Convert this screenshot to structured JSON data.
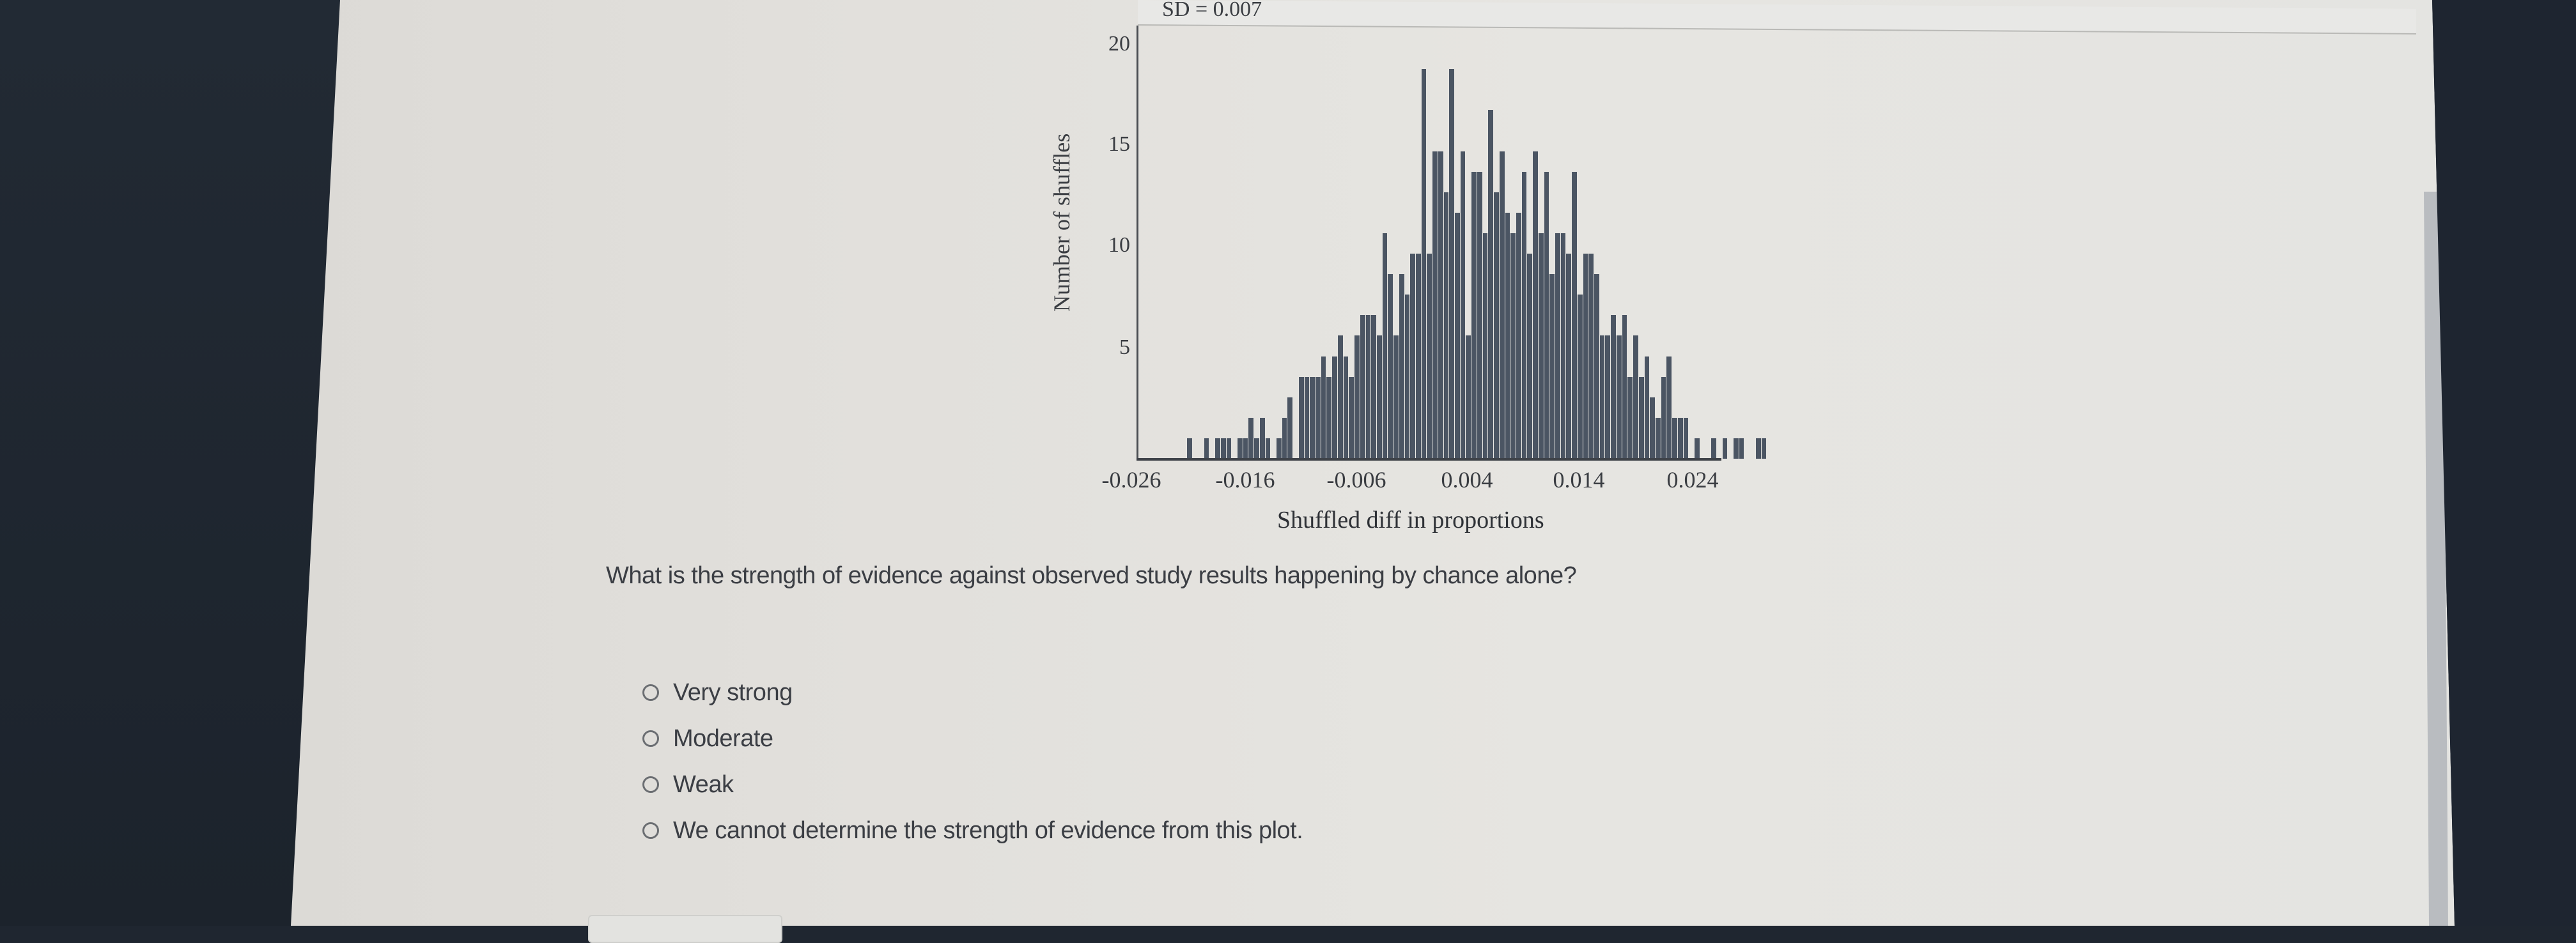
{
  "chart_data": {
    "type": "bar",
    "subtype": "histogram",
    "title": "",
    "annotation": "SD = 0.007",
    "xlabel": "Shuffled diff in proportions",
    "ylabel": "Number of shuffles",
    "x_ticks": [
      "-0.026",
      "-0.016",
      "-0.006",
      "0.004",
      "0.014",
      "0.024"
    ],
    "y_ticks": [
      "5",
      "10",
      "15",
      "20"
    ],
    "xlim": [
      -0.026,
      0.026
    ],
    "ylim": [
      0,
      21
    ],
    "bin_width": 0.0005,
    "bin_start": -0.0215,
    "grid": false,
    "legend": "none",
    "values": [
      1,
      0,
      0,
      1,
      0,
      1,
      1,
      1,
      0,
      1,
      1,
      2,
      1,
      2,
      1,
      0,
      1,
      2,
      3,
      0,
      4,
      4,
      4,
      4,
      5,
      4,
      5,
      6,
      5,
      4,
      6,
      7,
      7,
      7,
      6,
      11,
      9,
      6,
      9,
      8,
      10,
      10,
      19,
      10,
      15,
      15,
      13,
      19,
      12,
      15,
      6,
      14,
      14,
      11,
      17,
      13,
      15,
      12,
      11,
      12,
      14,
      10,
      15,
      11,
      14,
      9,
      11,
      11,
      10,
      14,
      8,
      10,
      10,
      9,
      6,
      6,
      7,
      6,
      7,
      4,
      6,
      4,
      5,
      3,
      2,
      4,
      5,
      2,
      2,
      2,
      0,
      1,
      0,
      0,
      1,
      0,
      1,
      0,
      1,
      1,
      0,
      0,
      1,
      1
    ],
    "bar_color": "#4b5563"
  },
  "question": {
    "text": "What is the strength of evidence against observed study results happening by chance alone?",
    "options": [
      {
        "label": "Very strong",
        "selected": false
      },
      {
        "label": "Moderate",
        "selected": false
      },
      {
        "label": "Weak",
        "selected": false
      },
      {
        "label": "We cannot determine the strength of evidence from this plot.",
        "selected": false
      }
    ]
  },
  "colors": {
    "page_bg": "#e3e2de",
    "bezel": "#1f2630",
    "text": "#3b3e44",
    "bar": "#4b5563"
  }
}
